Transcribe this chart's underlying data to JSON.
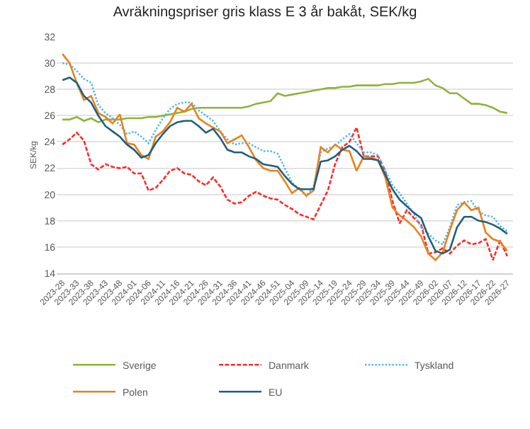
{
  "chart_data": {
    "type": "line",
    "title": "Avräkningspriser gris klass E 3 år bakåt, SEK/kg",
    "ylabel": "SEK/kg",
    "categories": [
      "2023-28",
      null,
      "2023-33",
      null,
      "2023-38",
      null,
      "2023-43",
      null,
      "2023-48",
      null,
      "2024-01",
      null,
      "2024-06",
      null,
      "2024-11",
      null,
      "2024-16",
      null,
      "2024-21",
      null,
      "2024-26",
      null,
      "2024-31",
      null,
      "2024-36",
      null,
      "2024-41",
      null,
      "2024-46",
      null,
      "2024-51",
      null,
      "2025-04",
      null,
      "2025-09",
      null,
      "2025-14",
      null,
      "2025-19",
      null,
      "2025-24",
      null,
      "2025-29",
      null,
      "2025-34",
      null,
      "2025-39",
      null,
      "2025-44",
      null,
      "2025-49",
      null,
      "2026-02",
      null,
      "2026-07",
      null,
      "2026-12",
      null,
      "2026-17",
      null,
      "2026-22",
      null,
      "2026-27"
    ],
    "ylim": [
      14,
      32
    ],
    "yticks": [
      14,
      16,
      18,
      20,
      22,
      24,
      26,
      28,
      30,
      32
    ],
    "grid": "y",
    "legend": "bottom",
    "marker": "none",
    "series": [
      {
        "name": "Sverige",
        "color": "#8db43a",
        "line_style": "solid",
        "values": [
          25.7,
          25.7,
          25.9,
          25.6,
          25.8,
          25.5,
          25.7,
          25.7,
          25.7,
          25.8,
          25.8,
          25.8,
          25.9,
          25.9,
          26.0,
          26.1,
          26.2,
          26.3,
          26.5,
          26.6,
          26.6,
          26.6,
          26.6,
          26.6,
          26.6,
          26.6,
          26.7,
          26.9,
          27.0,
          27.1,
          27.7,
          27.5,
          27.6,
          27.7,
          27.8,
          27.9,
          28.0,
          28.1,
          28.1,
          28.2,
          28.2,
          28.3,
          28.3,
          28.3,
          28.3,
          28.4,
          28.4,
          28.5,
          28.5,
          28.5,
          28.6,
          28.8,
          28.3,
          28.1,
          27.7,
          27.7,
          27.3,
          26.9,
          26.9,
          26.8,
          26.6,
          26.3,
          26.2
        ]
      },
      {
        "name": "Danmark",
        "color": "#ff2a2a",
        "line_style": "dashed",
        "values": [
          23.8,
          24.2,
          24.7,
          24.1,
          22.3,
          21.9,
          22.3,
          22.1,
          22.0,
          22.1,
          21.6,
          21.6,
          20.3,
          20.5,
          21.1,
          21.8,
          22.0,
          21.6,
          21.5,
          21.0,
          20.7,
          21.3,
          20.6,
          19.6,
          19.3,
          19.4,
          19.9,
          20.2,
          19.9,
          19.7,
          19.6,
          19.2,
          18.9,
          18.5,
          18.3,
          18.1,
          19.2,
          20.3,
          22.3,
          23.6,
          24.0,
          25.1,
          22.9,
          22.9,
          22.9,
          21.8,
          19.5,
          17.8,
          18.8,
          18.2,
          17.7,
          15.5,
          15.6,
          15.9,
          15.5,
          16.1,
          16.5,
          16.2,
          16.3,
          16.6,
          15.0,
          16.5,
          15.3
        ]
      },
      {
        "name": "Tyskland",
        "color": "#4fb8e8",
        "line_style": "dotted",
        "values": [
          30.0,
          29.9,
          29.4,
          28.8,
          28.5,
          26.8,
          26.2,
          25.8,
          25.3,
          24.6,
          24.8,
          24.4,
          23.9,
          24.9,
          25.8,
          26.5,
          26.9,
          27.0,
          27.0,
          26.4,
          26.0,
          25.6,
          24.8,
          24.2,
          23.8,
          23.9,
          23.9,
          23.6,
          23.3,
          23.3,
          23.1,
          22.0,
          20.9,
          20.4,
          19.9,
          20.6,
          23.2,
          23.5,
          23.7,
          24.2,
          24.6,
          23.9,
          23.2,
          23.2,
          23.0,
          21.8,
          20.7,
          20.1,
          19.3,
          18.5,
          17.5,
          17.0,
          16.5,
          16.2,
          17.5,
          19.2,
          19.4,
          19.5,
          18.7,
          18.4,
          18.3,
          17.6,
          17.2
        ]
      },
      {
        "name": "Polen",
        "color": "#e8821e",
        "line_style": "solid",
        "values": [
          30.7,
          30.0,
          28.5,
          27.2,
          27.5,
          26.2,
          25.9,
          25.4,
          26.1,
          23.9,
          23.8,
          23.0,
          22.7,
          24.4,
          24.8,
          25.5,
          26.6,
          26.3,
          26.9,
          25.8,
          25.4,
          25.1,
          24.8,
          23.9,
          24.2,
          24.5,
          23.6,
          22.6,
          22.0,
          21.8,
          21.8,
          21.0,
          20.1,
          20.5,
          19.9,
          20.3,
          23.6,
          23.2,
          23.8,
          23.4,
          23.3,
          21.8,
          22.9,
          22.8,
          22.6,
          21.3,
          19.0,
          18.4,
          18.0,
          17.5,
          16.8,
          15.5,
          15.0,
          15.6,
          17.3,
          18.8,
          19.4,
          18.8,
          19.0,
          17.1,
          16.6,
          16.4,
          15.7
        ]
      },
      {
        "name": "EU",
        "color": "#1f5f7f",
        "line_style": "solid",
        "values": [
          28.7,
          28.9,
          28.5,
          27.5,
          27.0,
          26.0,
          25.2,
          24.8,
          24.4,
          23.8,
          23.4,
          22.8,
          23.0,
          23.9,
          24.6,
          25.2,
          25.5,
          25.6,
          25.6,
          25.2,
          24.7,
          25.0,
          24.3,
          23.4,
          23.2,
          23.2,
          22.9,
          22.7,
          22.3,
          22.2,
          22.1,
          21.4,
          20.8,
          20.4,
          20.4,
          20.4,
          22.5,
          22.6,
          22.9,
          23.4,
          23.7,
          23.3,
          22.7,
          22.7,
          22.6,
          21.5,
          20.4,
          19.6,
          19.1,
          18.6,
          18.2,
          16.8,
          15.7,
          15.5,
          15.8,
          17.5,
          18.3,
          18.3,
          18.0,
          17.9,
          17.7,
          17.4,
          17.0
        ]
      }
    ]
  }
}
